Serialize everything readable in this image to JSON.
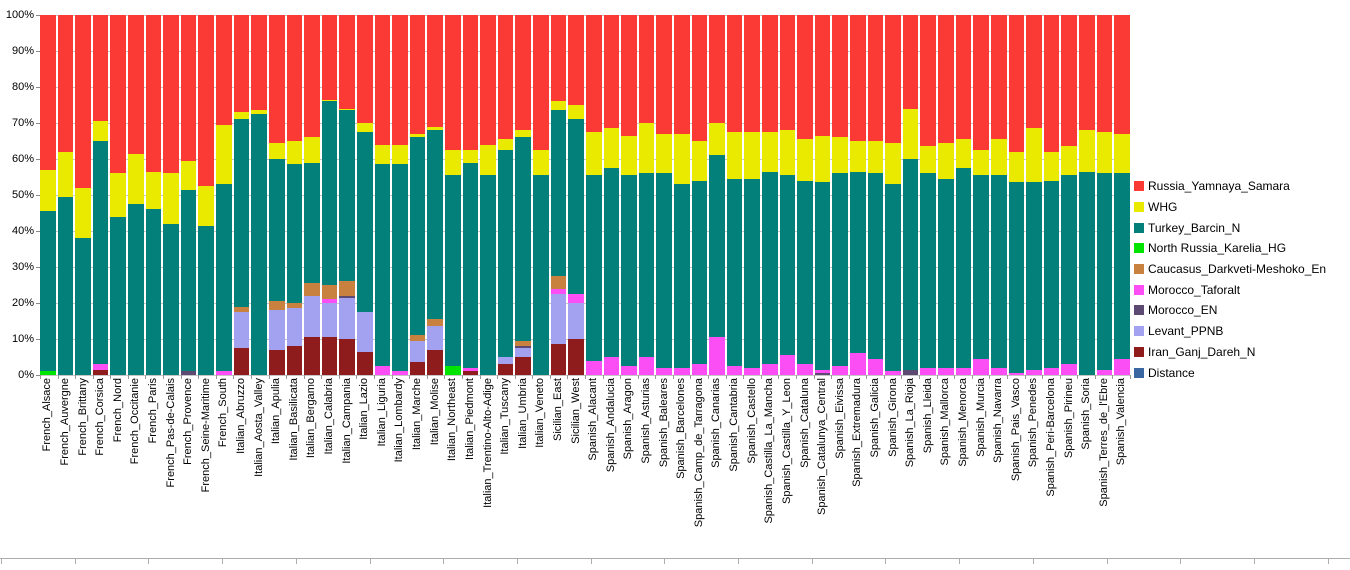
{
  "chart_data": {
    "type": "bar",
    "stacked": true,
    "orientation": "vertical",
    "unit": "%",
    "ylim": [
      0,
      100
    ],
    "yticks": [
      "0%",
      "10%",
      "20%",
      "30%",
      "40%",
      "50%",
      "60%",
      "70%",
      "80%",
      "90%",
      "100%"
    ],
    "grid": "horizontal",
    "legend_position": "right",
    "legend_order": [
      "yamnaya",
      "whg",
      "turkey",
      "karelia",
      "caucasus",
      "taforalt",
      "morocco_en",
      "levant",
      "iran",
      "distance"
    ],
    "stack_order_bottom_to_top": [
      "iran",
      "levant",
      "morocco_en",
      "taforalt",
      "caucasus",
      "karelia",
      "turkey",
      "whg",
      "yamnaya"
    ],
    "categories": [
      "French_Alsace",
      "French_Auvergne",
      "French_Brittany",
      "French_Corsica",
      "French_Nord",
      "French_Occitanie",
      "French_Paris",
      "French_Pas-de-Calais",
      "French_Provence",
      "French_Seine-Maritime",
      "French_South",
      "Italian_Abruzzo",
      "Italian_Aosta_Valley",
      "Italian_Apulia",
      "Italian_Basilicata",
      "Italian_Bergamo",
      "Italian_Calabria",
      "Italian_Campania",
      "Italian_Lazio",
      "Italian_Liguria",
      "Italian_Lombardy",
      "Italian_Marche",
      "Italian_Molise",
      "Italian_Northeast",
      "Italian_Piedmont",
      "Italian_Trentino-Alto-Adige",
      "Italian_Tuscany",
      "Italian_Umbria",
      "Italian_Veneto",
      "Sicilian_East",
      "Sicilian_West",
      "Spanish_Alacant",
      "Spanish_Andalucia",
      "Spanish_Aragon",
      "Spanish_Asturias",
      "Spanish_Baleares",
      "Spanish_Barcelones",
      "Spanish_Camp_de_Tarragona",
      "Spanish_Canarias",
      "Spanish_Cantabria",
      "Spanish_Castello",
      "Spanish_Castilla_La_Mancha",
      "Spanish_Castilla_Y_Leon",
      "Spanish_Cataluna",
      "Spanish_Catalunya_Central",
      "Spanish_Eivissa",
      "Spanish_Extremadura",
      "Spanish_Galicia",
      "Spanish_Girona",
      "Spanish_La_Rioja",
      "Spanish_Lleida",
      "Spanish_Mallorca",
      "Spanish_Menorca",
      "Spanish_Murcia",
      "Spanish_Navarra",
      "Spanish_Pais_Vasco",
      "Spanish_Penedes",
      "Spanish_Peri-Barcelona",
      "Spanish_Pirineu",
      "Spanish_Soria",
      "Spanish_Terres_de_l'Ebre",
      "Spanish_Valencia"
    ],
    "series": [
      {
        "id": "yamnaya",
        "name": "Russia_Yamnaya_Samara",
        "color": "#fc3a35",
        "values": [
          43,
          38,
          48,
          29.5,
          44,
          38.5,
          43.5,
          44,
          40.5,
          47.5,
          30.5,
          27,
          26.5,
          35.5,
          35,
          34,
          23.5,
          26,
          30,
          36,
          36,
          33,
          31,
          37.5,
          37.5,
          36,
          34.5,
          32,
          37.5,
          24,
          25,
          32.5,
          31.5,
          33.5,
          30,
          33,
          33,
          35,
          30,
          32.5,
          32.5,
          32.5,
          32,
          34.5,
          33.5,
          34,
          35,
          35,
          35.5,
          26,
          36.5,
          35.5,
          34.5,
          37.5,
          34.5,
          38,
          31.5,
          38,
          36.5,
          32,
          32.5,
          33
        ]
      },
      {
        "id": "whg",
        "name": "WHG",
        "color": "#eaea00",
        "values": [
          11.5,
          12.5,
          14,
          5.5,
          12,
          14,
          10.5,
          14,
          8,
          11,
          16.5,
          2,
          1,
          4.5,
          6.5,
          7,
          0.5,
          0.5,
          2.5,
          5.5,
          5.5,
          1,
          1,
          7,
          3.5,
          8.5,
          3,
          2,
          7,
          2.5,
          4,
          12,
          11,
          11,
          14,
          11,
          14,
          11,
          9,
          13,
          13,
          11,
          12.5,
          11.5,
          13,
          10,
          8.5,
          9,
          11.5,
          14,
          7.5,
          10,
          8,
          7,
          10,
          8.5,
          15,
          8,
          8,
          11.5,
          11.5,
          11
        ]
      },
      {
        "id": "turkey",
        "name": "Turkey_Barcin_N",
        "color": "#028079",
        "values": [
          44.5,
          49.5,
          38,
          62,
          44,
          47.5,
          46,
          42,
          50.5,
          41.5,
          52,
          52,
          72.5,
          39.5,
          38.5,
          33.5,
          51,
          47.5,
          50,
          56,
          57.5,
          55,
          52.5,
          53,
          57,
          55.5,
          57.5,
          56.5,
          55.5,
          46,
          48.5,
          51.5,
          52.5,
          53,
          51,
          54,
          51,
          51,
          50.5,
          52,
          52.5,
          53.5,
          50,
          51,
          52,
          53.5,
          50.5,
          51.5,
          52,
          58.5,
          54,
          52.5,
          55.5,
          51,
          53.5,
          53,
          52,
          52,
          52.5,
          56.5,
          54.5,
          51.5
        ]
      },
      {
        "id": "karelia",
        "name": "North Russia_Karelia_HG",
        "color": "#00e400",
        "values": [
          1,
          0,
          0,
          0,
          0,
          0,
          0,
          0,
          0,
          0,
          0,
          0,
          0,
          0,
          0,
          0,
          0,
          0,
          0,
          0,
          0,
          0,
          0,
          2.5,
          0,
          0,
          0,
          0,
          0,
          0,
          0,
          0,
          0,
          0,
          0,
          0,
          0,
          0,
          0,
          0,
          0,
          0,
          0,
          0,
          0,
          0,
          0,
          0,
          0,
          0,
          0,
          0,
          0,
          0,
          0,
          0,
          0,
          0,
          0,
          0,
          0,
          0
        ]
      },
      {
        "id": "caucasus",
        "name": "Caucasus_Darkveti-Meshoko_En",
        "color": "#c8813f",
        "values": [
          0,
          0,
          0,
          0,
          0,
          0,
          0,
          0,
          0,
          0,
          0,
          1.5,
          0,
          2.5,
          1.5,
          3.5,
          4,
          4,
          0,
          0,
          0,
          1.5,
          2,
          0,
          0,
          0,
          0,
          1.5,
          0,
          3.5,
          0,
          0,
          0,
          0,
          0,
          0,
          0,
          0,
          0,
          0,
          0,
          0,
          0,
          0,
          0,
          0,
          0,
          0,
          0,
          0,
          0,
          0,
          0,
          0,
          0,
          0,
          0,
          0,
          0,
          0,
          0,
          0
        ]
      },
      {
        "id": "taforalt",
        "name": "Morocco_Taforalt",
        "color": "#fb4ef5",
        "values": [
          0,
          0,
          0,
          1.5,
          0,
          0,
          0,
          0,
          0,
          0,
          1,
          0,
          0,
          0,
          0,
          0,
          1,
          0,
          0,
          2.5,
          1,
          0,
          0,
          0,
          1,
          0,
          0,
          0,
          0,
          1.5,
          2.5,
          4,
          5,
          2.5,
          5,
          2,
          2,
          3,
          10.5,
          2.5,
          2,
          3,
          5.5,
          3,
          1,
          2.5,
          6,
          4.5,
          1,
          0,
          2,
          2,
          2,
          4.5,
          2,
          0.5,
          1.5,
          2,
          3,
          0,
          1.5,
          4.5
        ]
      },
      {
        "id": "morocco_en",
        "name": "Morocco_EN",
        "color": "#5c4a73",
        "values": [
          0,
          0,
          0,
          0,
          0,
          0,
          0,
          0,
          1,
          0,
          0,
          0,
          0,
          0,
          0,
          0,
          0,
          0.5,
          0,
          0,
          0,
          0,
          0,
          0,
          0,
          0,
          0,
          0.5,
          0,
          0,
          0,
          0,
          0,
          0,
          0,
          0,
          0,
          0,
          0,
          0,
          0,
          0,
          0,
          0,
          0.5,
          0,
          0,
          0,
          0,
          1.5,
          0,
          0,
          0,
          0,
          0,
          0,
          0,
          0,
          0,
          0,
          0,
          0
        ]
      },
      {
        "id": "levant",
        "name": "Levant_PPNB",
        "color": "#a2a2f0",
        "values": [
          0,
          0,
          0,
          0,
          0,
          0,
          0,
          0,
          0,
          0,
          0,
          10,
          0,
          11,
          10.5,
          11.5,
          9.5,
          11.5,
          11,
          0,
          0,
          6,
          6.5,
          0,
          0,
          0,
          2,
          2.5,
          0,
          14,
          10,
          0,
          0,
          0,
          0,
          0,
          0,
          0,
          0,
          0,
          0,
          0,
          0,
          0,
          0,
          0,
          0,
          0,
          0,
          0,
          0,
          0,
          0,
          0,
          0,
          0,
          0,
          0,
          0,
          0,
          0,
          0
        ]
      },
      {
        "id": "iran",
        "name": "Iran_Ganj_Dareh_N",
        "color": "#8e1c1c",
        "values": [
          0,
          0,
          0,
          1.5,
          0,
          0,
          0,
          0,
          0,
          0,
          0,
          7.5,
          0,
          7,
          8,
          10.5,
          10.5,
          10,
          6.5,
          0,
          0,
          3.5,
          7,
          0,
          1,
          0,
          3,
          5,
          0,
          8.5,
          10,
          0,
          0,
          0,
          0,
          0,
          0,
          0,
          0,
          0,
          0,
          0,
          0,
          0,
          0,
          0,
          0,
          0,
          0,
          0,
          0,
          0,
          0,
          0,
          0,
          0,
          0,
          0,
          0,
          0,
          0,
          0
        ]
      },
      {
        "id": "distance",
        "name": "Distance",
        "color": "#3a67a2",
        "values": [
          0,
          0,
          0,
          0,
          0,
          0,
          0,
          0,
          0,
          0,
          0,
          0,
          0,
          0,
          0,
          0,
          0,
          0,
          0,
          0,
          0,
          0,
          0,
          0,
          0,
          0,
          0,
          0,
          0,
          0,
          0,
          0,
          0,
          0,
          0,
          0,
          0,
          0,
          0,
          0,
          0,
          0,
          0,
          0,
          0,
          0,
          0,
          0,
          0,
          0,
          0,
          0,
          0,
          0,
          0,
          0,
          0,
          0,
          0,
          0,
          0,
          0
        ]
      }
    ]
  },
  "layout": {
    "gridline_color": "#c6c6c6",
    "tick_color": "#999999",
    "bottom_rule_color": "#adadad"
  }
}
